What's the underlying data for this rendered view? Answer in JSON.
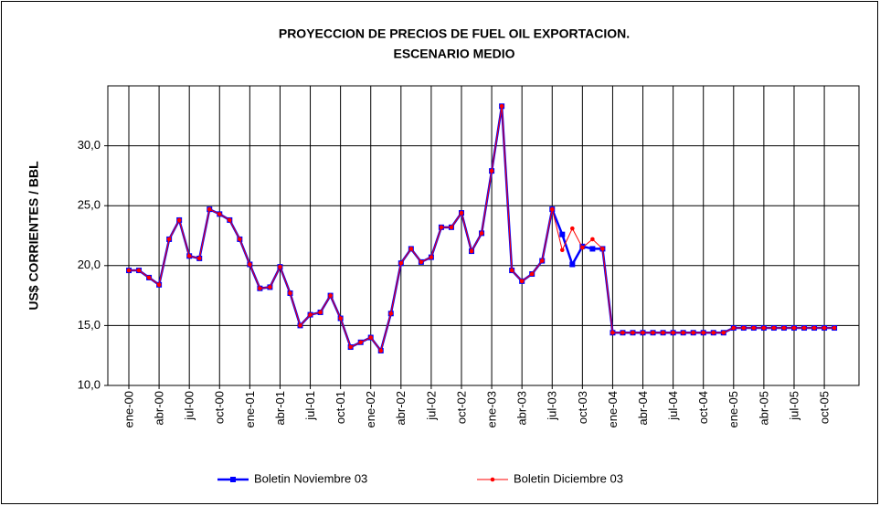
{
  "chart_data": {
    "type": "line",
    "title": "PROYECCION DE PRECIOS DE FUEL OIL EXPORTACION.",
    "subtitle": "ESCENARIO MEDIO",
    "y_label": "US$ CORRIENTES / BBL",
    "categories": [
      "ene-00",
      null,
      null,
      "abr-00",
      null,
      null,
      "jul-00",
      null,
      null,
      "oct-00",
      null,
      null,
      "ene-01",
      null,
      null,
      "abr-01",
      null,
      null,
      "jul-01",
      null,
      null,
      "oct-01",
      null,
      null,
      "ene-02",
      null,
      null,
      "abr-02",
      null,
      null,
      "jul-02",
      null,
      null,
      "oct-02",
      null,
      null,
      "ene-03",
      null,
      null,
      "abr-03",
      null,
      null,
      "jul-03",
      null,
      null,
      "oct-03",
      null,
      null,
      "ene-04",
      null,
      null,
      "abr-04",
      null,
      null,
      "jul-04",
      null,
      null,
      "oct-04",
      null,
      null,
      "ene-05",
      null,
      null,
      "abr-05",
      null,
      null,
      "jul-05",
      null,
      null,
      "oct-05",
      null,
      null
    ],
    "series": [
      {
        "name": "Boletin Noviembre 03",
        "color": "#0000ff",
        "marker": "square",
        "values": [
          19.6,
          19.6,
          19.0,
          18.4,
          22.2,
          23.8,
          20.8,
          20.6,
          24.7,
          24.3,
          23.8,
          22.2,
          20.1,
          18.1,
          18.2,
          19.9,
          17.7,
          15.0,
          15.9,
          16.1,
          17.5,
          15.6,
          13.2,
          13.6,
          14.0,
          12.9,
          16.0,
          20.2,
          21.4,
          20.3,
          20.7,
          23.2,
          23.2,
          24.4,
          21.2,
          22.7,
          27.9,
          33.3,
          19.6,
          18.7,
          19.3,
          20.4,
          24.7,
          22.6,
          20.1,
          21.6,
          21.4,
          21.4,
          14.4,
          14.4,
          14.4,
          14.4,
          14.4,
          14.4,
          14.4,
          14.4,
          14.4,
          14.4,
          14.4,
          14.4,
          14.8,
          14.8,
          14.8,
          14.8,
          14.8,
          14.8,
          14.8,
          14.8,
          14.8,
          14.8,
          14.8,
          null
        ]
      },
      {
        "name": "Boletin Diciembre 03",
        "color": "#ff0000",
        "marker": "circle",
        "values": [
          19.6,
          19.6,
          19.0,
          18.4,
          22.2,
          23.8,
          20.8,
          20.6,
          24.7,
          24.3,
          23.8,
          22.2,
          20.1,
          18.1,
          18.2,
          19.9,
          17.7,
          15.0,
          15.9,
          16.1,
          17.5,
          15.6,
          13.2,
          13.6,
          14.0,
          12.9,
          16.0,
          20.2,
          21.4,
          20.3,
          20.7,
          23.2,
          23.2,
          24.4,
          21.2,
          22.7,
          27.9,
          33.3,
          19.6,
          18.7,
          19.3,
          20.4,
          24.7,
          21.3,
          23.1,
          21.5,
          22.2,
          21.4,
          14.4,
          14.4,
          14.4,
          14.4,
          14.4,
          14.4,
          14.4,
          14.4,
          14.4,
          14.4,
          14.4,
          14.4,
          14.8,
          14.8,
          14.8,
          14.8,
          14.8,
          14.8,
          14.8,
          14.8,
          14.8,
          14.8,
          14.8,
          null
        ]
      }
    ],
    "ylim": [
      10,
      35
    ],
    "yticks": [
      {
        "value": 10,
        "label": "10,0"
      },
      {
        "value": 15,
        "label": "15,0"
      },
      {
        "value": 20,
        "label": "20,0"
      },
      {
        "value": 25,
        "label": "25,0"
      },
      {
        "value": 30,
        "label": "30,0"
      }
    ],
    "grid": true,
    "legend": "bottom"
  }
}
